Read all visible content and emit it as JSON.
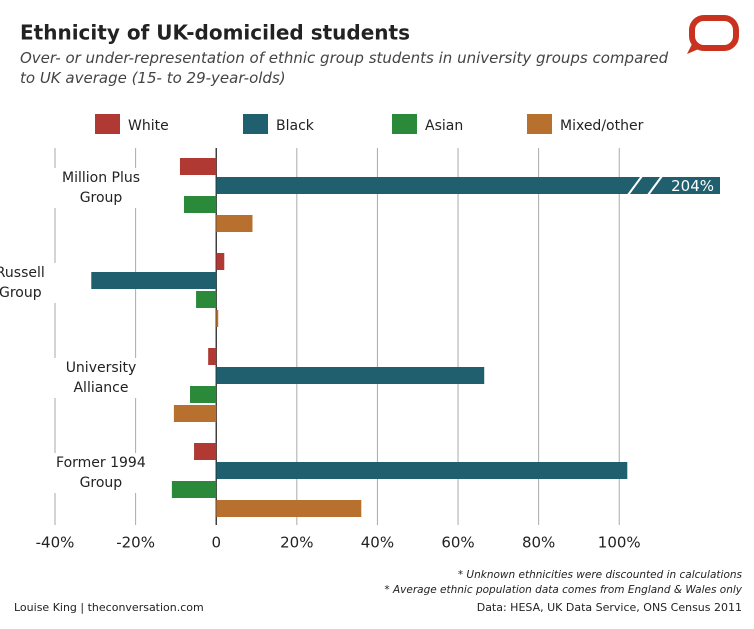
{
  "chart_data": {
    "type": "hbar",
    "title": "Ethnicity of UK-domiciled students",
    "subtitle": "Over- or under-representation of ethnic group students in university groups compared\nto UK average (15- to 29-year-olds)",
    "categories": [
      "Million Plus\nGroup",
      "Russell\nGroup",
      "University\nAlliance",
      "Former 1994\nGroup"
    ],
    "series": [
      {
        "name": "White",
        "color": "#b03a33",
        "values": [
          -9,
          2,
          -2,
          -5.5
        ]
      },
      {
        "name": "Black",
        "color": "#1f5f6e",
        "values": [
          204,
          -31,
          66.5,
          102
        ],
        "value_labels": [
          "204%",
          null,
          null,
          null
        ]
      },
      {
        "name": "Asian",
        "color": "#2a8a3a",
        "values": [
          -8,
          -5,
          -6.5,
          -11
        ]
      },
      {
        "name": "Mixed/other",
        "color": "#b8702e",
        "values": [
          9,
          0.5,
          -10.5,
          36
        ]
      }
    ],
    "xlim": [
      -40,
      125
    ],
    "xticks": [
      {
        "value": -40,
        "label": "-40%"
      },
      {
        "value": -20,
        "label": "-20%"
      },
      0,
      {
        "value": 20,
        "label": "20%"
      },
      {
        "value": 40,
        "label": "40%"
      },
      {
        "value": 60,
        "label": "60%"
      },
      {
        "value": 80,
        "label": "80%"
      },
      {
        "value": 100,
        "label": "100%"
      }
    ],
    "grid": true,
    "notes": [
      "* Unknown ethnicities were discounted in calculations",
      "* Average ethnic population data comes from England & Wales only"
    ],
    "credit": "Louise King | theconversation.com",
    "source": "Data: HESA, UK Data Service, ONS Census 2011"
  }
}
